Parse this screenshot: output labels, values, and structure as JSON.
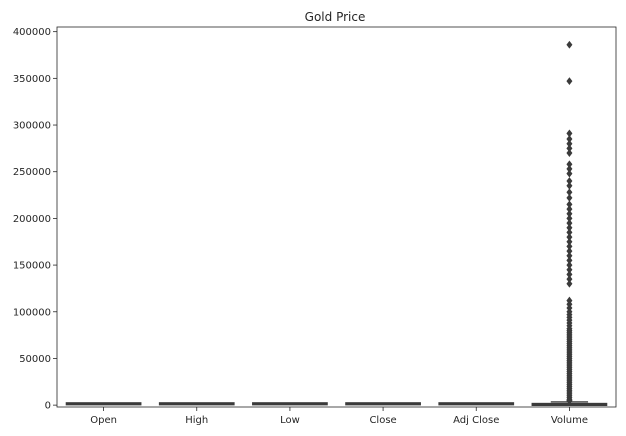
{
  "chart_data": {
    "type": "box",
    "title": "Gold Price",
    "xlabel": "",
    "ylabel": "",
    "ylim": [
      -2000,
      405000
    ],
    "y_ticks": [
      0,
      50000,
      100000,
      150000,
      200000,
      250000,
      300000,
      350000,
      400000
    ],
    "y_tick_labels": [
      "0",
      "50000",
      "100000",
      "150000",
      "200000",
      "250000",
      "300000",
      "350000",
      "400000"
    ],
    "grid": false,
    "color": "#3b3b3b",
    "categories": [
      "Open",
      "High",
      "Low",
      "Close",
      "Adj Close",
      "Volume"
    ],
    "boxes": [
      {
        "name": "Open",
        "whislo": 1100,
        "q1": 1200,
        "med": 1300,
        "q3": 1700,
        "whishi": 2100,
        "fliers": []
      },
      {
        "name": "High",
        "whislo": 1100,
        "q1": 1200,
        "med": 1300,
        "q3": 1700,
        "whishi": 2100,
        "fliers": []
      },
      {
        "name": "Low",
        "whislo": 1100,
        "q1": 1200,
        "med": 1300,
        "q3": 1700,
        "whishi": 2100,
        "fliers": []
      },
      {
        "name": "Close",
        "whislo": 1100,
        "q1": 1200,
        "med": 1300,
        "q3": 1700,
        "whishi": 2100,
        "fliers": []
      },
      {
        "name": "Adj Close",
        "whislo": 1100,
        "q1": 1200,
        "med": 1300,
        "q3": 1700,
        "whishi": 2100,
        "fliers": []
      },
      {
        "name": "Volume",
        "whislo": 0,
        "q1": 0,
        "med": 0,
        "q3": 1500,
        "whishi": 3500,
        "fliers": [
          386000,
          347000,
          291000,
          285000,
          280000,
          275000,
          270000,
          258000,
          253000,
          248000,
          240000,
          235000,
          228000,
          222000,
          215000,
          210000,
          205000,
          200000,
          195000,
          190000,
          185000,
          180000,
          175000,
          170000,
          165000,
          160000,
          155000,
          150000,
          145000,
          140000,
          135000,
          130000,
          112000,
          108000,
          104000,
          100000,
          97000,
          94000,
          91000,
          88000,
          85000,
          82000,
          80000,
          78000,
          76000,
          74000,
          72000,
          70000,
          68000,
          66000,
          64000,
          62000,
          60000,
          58000,
          56000,
          54000,
          52000,
          50000,
          48000,
          46000,
          44000,
          42000,
          40000,
          38000,
          36000,
          34000,
          32000,
          30000,
          28000,
          26000,
          24000,
          22000,
          20000,
          18000,
          16000,
          14000,
          12000,
          10000,
          8000,
          6000,
          5000,
          4500
        ]
      }
    ]
  }
}
